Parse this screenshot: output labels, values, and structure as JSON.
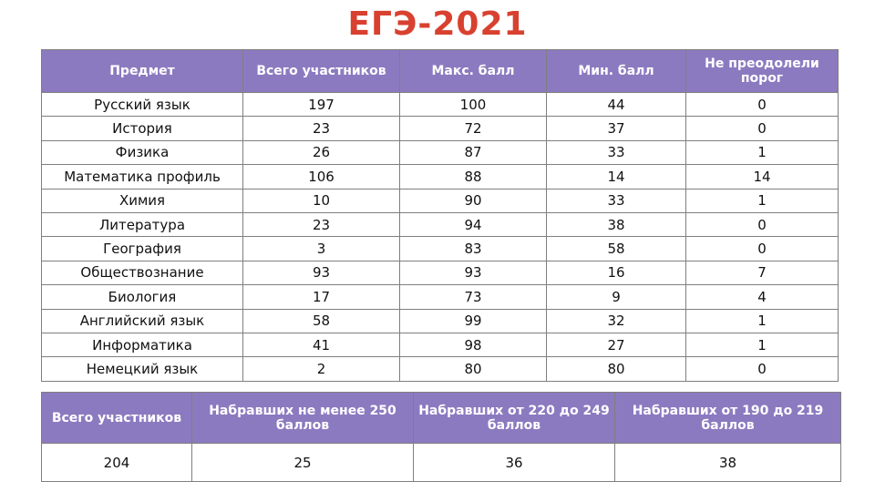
{
  "title": "ЕГЭ-2021",
  "main_table": {
    "headers": [
      "Предмет",
      "Всего участников",
      "Макс. балл",
      "Мин. балл",
      "Не преодолели порог"
    ],
    "rows": [
      [
        "Русский язык",
        "197",
        "100",
        "44",
        "0"
      ],
      [
        "История",
        "23",
        "72",
        "37",
        "0"
      ],
      [
        "Физика",
        "26",
        "87",
        "33",
        "1"
      ],
      [
        "Математика  профиль",
        "106",
        "88",
        "14",
        "14"
      ],
      [
        "Химия",
        "10",
        "90",
        "33",
        "1"
      ],
      [
        "Литература",
        "23",
        "94",
        "38",
        "0"
      ],
      [
        "География",
        "3",
        "83",
        "58",
        "0"
      ],
      [
        "Обществознание",
        "93",
        "93",
        "16",
        "7"
      ],
      [
        "Биология",
        "17",
        "73",
        "9",
        "4"
      ],
      [
        "Английский язык",
        "58",
        "99",
        "32",
        "1"
      ],
      [
        "Информатика",
        "41",
        "98",
        "27",
        "1"
      ],
      [
        "Немецкий язык",
        "2",
        "80",
        "80",
        "0"
      ]
    ]
  },
  "summary_table": {
    "headers": [
      "Всего участников",
      "Набравших не менее 250 баллов",
      "Набравших от 220 до 249 баллов",
      "Набравших от 190 до 219 баллов"
    ],
    "row": [
      "204",
      "25",
      "36",
      "38"
    ]
  },
  "colors": {
    "title": "#d8412f",
    "header_bg": "#8c7ac0",
    "header_text": "#ffffff",
    "border": "#7f7f7f"
  }
}
